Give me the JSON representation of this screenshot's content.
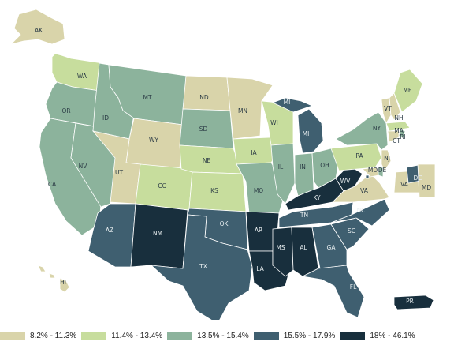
{
  "colors": {
    "c1": "#d9d4aa",
    "c2": "#c7dd9d",
    "c3": "#8cb39c",
    "c4": "#3f5f70",
    "c5": "#182f3d",
    "border": "#ffffff",
    "dark_label": "#2b3b45",
    "light_label": "#e8eef0"
  },
  "legend": [
    {
      "label": "8.2% - 11.3%",
      "color_key": "c1"
    },
    {
      "label": "11.4% - 13.4%",
      "color_key": "c2"
    },
    {
      "label": "13.5% - 15.4%",
      "color_key": "c3"
    },
    {
      "label": "15.5% - 17.9%",
      "color_key": "c4"
    },
    {
      "label": "18% - 46.1%",
      "color_key": "c5"
    }
  ],
  "states": [
    {
      "abbr": "WA",
      "bin": "c2"
    },
    {
      "abbr": "OR",
      "bin": "c3"
    },
    {
      "abbr": "CA",
      "bin": "c3"
    },
    {
      "abbr": "NV",
      "bin": "c3"
    },
    {
      "abbr": "ID",
      "bin": "c3"
    },
    {
      "abbr": "MT",
      "bin": "c3"
    },
    {
      "abbr": "WY",
      "bin": "c1"
    },
    {
      "abbr": "UT",
      "bin": "c1"
    },
    {
      "abbr": "AZ",
      "bin": "c4"
    },
    {
      "abbr": "CO",
      "bin": "c2"
    },
    {
      "abbr": "NM",
      "bin": "c5"
    },
    {
      "abbr": "ND",
      "bin": "c1"
    },
    {
      "abbr": "SD",
      "bin": "c3"
    },
    {
      "abbr": "NE",
      "bin": "c2"
    },
    {
      "abbr": "KS",
      "bin": "c2"
    },
    {
      "abbr": "OK",
      "bin": "c4"
    },
    {
      "abbr": "TX",
      "bin": "c4"
    },
    {
      "abbr": "MN",
      "bin": "c1"
    },
    {
      "abbr": "IA",
      "bin": "c2"
    },
    {
      "abbr": "MO",
      "bin": "c3"
    },
    {
      "abbr": "AR",
      "bin": "c5"
    },
    {
      "abbr": "LA",
      "bin": "c5"
    },
    {
      "abbr": "WI",
      "bin": "c2"
    },
    {
      "abbr": "IL",
      "bin": "c3"
    },
    {
      "abbr": "MI",
      "bin": "c4"
    },
    {
      "abbr": "IN",
      "bin": "c3"
    },
    {
      "abbr": "OH",
      "bin": "c3"
    },
    {
      "abbr": "KY",
      "bin": "c5"
    },
    {
      "abbr": "TN",
      "bin": "c4"
    },
    {
      "abbr": "MS",
      "bin": "c5"
    },
    {
      "abbr": "AL",
      "bin": "c5"
    },
    {
      "abbr": "GA",
      "bin": "c4"
    },
    {
      "abbr": "FL",
      "bin": "c4"
    },
    {
      "abbr": "SC",
      "bin": "c4"
    },
    {
      "abbr": "NC",
      "bin": "c4"
    },
    {
      "abbr": "VA",
      "bin": "c1"
    },
    {
      "abbr": "WV",
      "bin": "c5"
    },
    {
      "abbr": "PA",
      "bin": "c2"
    },
    {
      "abbr": "NY",
      "bin": "c3"
    },
    {
      "abbr": "VT",
      "bin": "c1"
    },
    {
      "abbr": "NH",
      "bin": "c1"
    },
    {
      "abbr": "ME",
      "bin": "c2"
    },
    {
      "abbr": "MA",
      "bin": "c2"
    },
    {
      "abbr": "RI",
      "bin": "c3"
    },
    {
      "abbr": "CT",
      "bin": "c1"
    },
    {
      "abbr": "NJ",
      "bin": "c1"
    },
    {
      "abbr": "DE",
      "bin": "c3"
    },
    {
      "abbr": "MD",
      "bin": "c1"
    },
    {
      "abbr": "DC",
      "bin": "c4"
    },
    {
      "abbr": "AK",
      "bin": "c1"
    },
    {
      "abbr": "HI",
      "bin": "c1"
    },
    {
      "abbr": "PR",
      "bin": "c5"
    }
  ],
  "inset": [
    {
      "abbr": "VA",
      "bin": "c1"
    },
    {
      "abbr": "DC",
      "bin": "c4"
    },
    {
      "abbr": "MD",
      "bin": "c1"
    }
  ],
  "extra_labels": [
    {
      "text": "MI",
      "bin": "c4"
    }
  ]
}
